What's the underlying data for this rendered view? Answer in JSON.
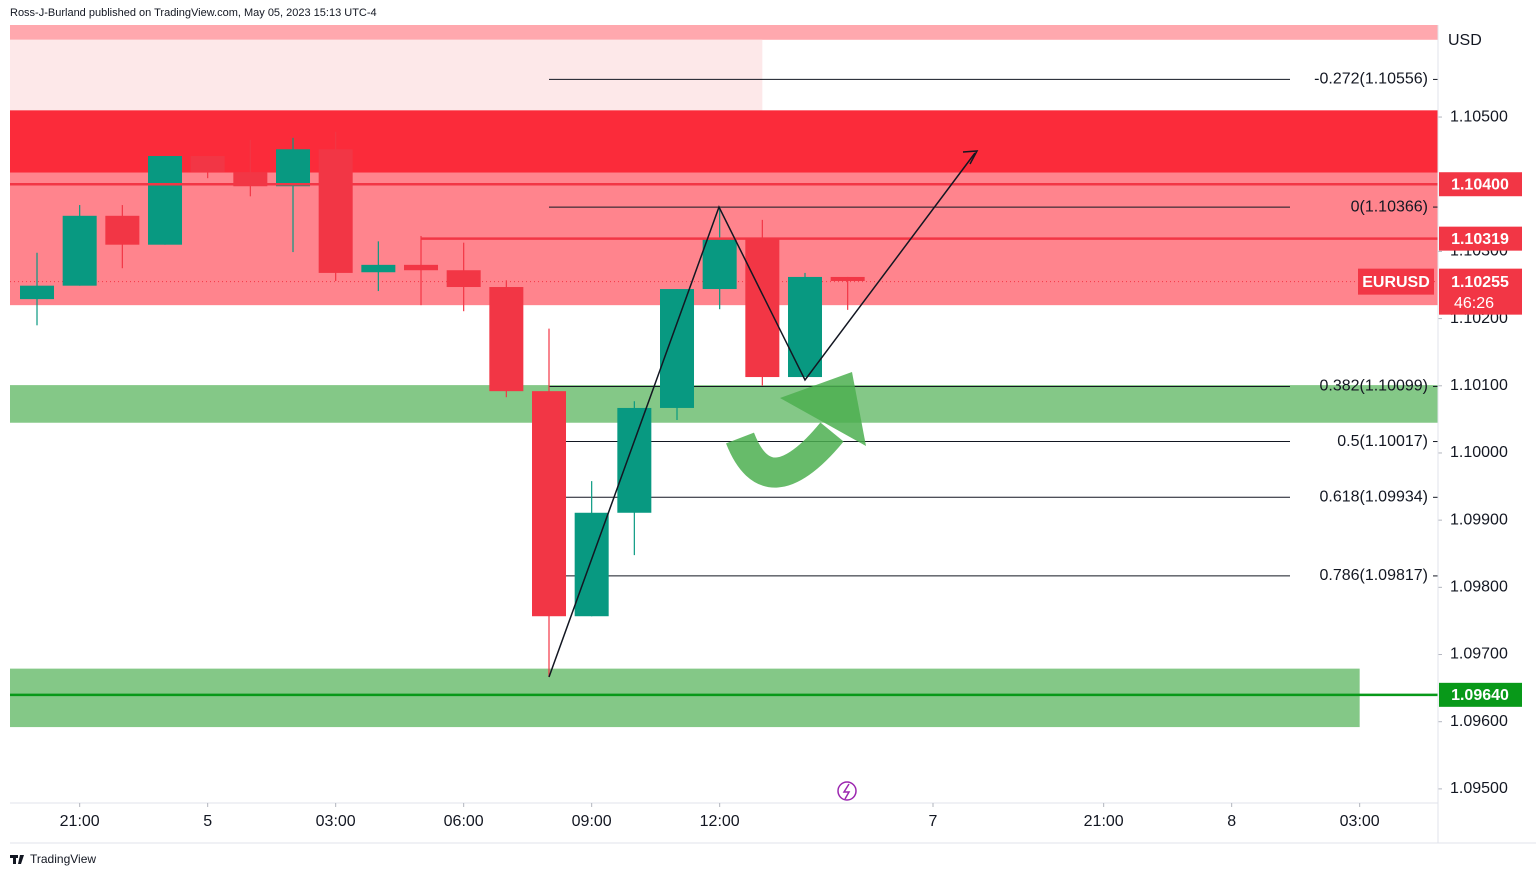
{
  "header": "Ross-J-Burland published on TradingView.com, May 05, 2023 15:13 UTC-4",
  "footer": "TradingView",
  "chart_data": {
    "type": "candlestick",
    "currency": "USD",
    "x": [
      0,
      1,
      2,
      3,
      4,
      5,
      6,
      7,
      8,
      9,
      10,
      11,
      12,
      13,
      14,
      15,
      16,
      17,
      18,
      19
    ],
    "open": [
      1.10229,
      1.10249,
      1.10353,
      1.1031,
      1.10442,
      1.10418,
      1.10397,
      1.10452,
      1.10269,
      1.1028,
      1.10272,
      1.10247,
      1.10092,
      1.09757,
      1.09911,
      1.10067,
      1.10244,
      1.1032,
      1.10113,
      1.10262
    ],
    "high": [
      1.10298,
      1.10369,
      1.10369,
      1.10442,
      1.10442,
      1.10466,
      1.10469,
      1.10478,
      1.10315,
      1.10323,
      1.10313,
      1.10257,
      1.10185,
      1.09958,
      1.10077,
      1.10244,
      1.10366,
      1.10347,
      1.10268,
      1.10262
    ],
    "low": [
      1.1019,
      1.10249,
      1.10275,
      1.1031,
      1.10409,
      1.10382,
      1.10299,
      1.10256,
      1.10241,
      1.1022,
      1.10211,
      1.10083,
      1.09667,
      1.09757,
      1.09848,
      1.10049,
      1.10214,
      1.101,
      1.10113,
      1.10213
    ],
    "close": [
      1.10249,
      1.10353,
      1.1031,
      1.10442,
      1.10418,
      1.10397,
      1.10452,
      1.10268,
      1.1028,
      1.10272,
      1.10247,
      1.10092,
      1.09757,
      1.09911,
      1.10067,
      1.10244,
      1.1032,
      1.10113,
      1.10262,
      1.10256
    ],
    "up_color": "#089981",
    "down_color": "#f23645",
    "xlim": [
      -0.633,
      32.836
    ],
    "xticks": [
      {
        "value": 1,
        "label": "21:00"
      },
      {
        "value": 4,
        "label": "5"
      },
      {
        "value": 7,
        "label": "03:00"
      },
      {
        "value": 10,
        "label": "06:00"
      },
      {
        "value": 13,
        "label": "09:00"
      },
      {
        "value": 16,
        "label": "12:00"
      },
      {
        "value": 21,
        "label": "7"
      },
      {
        "value": 25,
        "label": "21:00"
      },
      {
        "value": 28,
        "label": "8"
      },
      {
        "value": 31,
        "label": "03:00"
      }
    ],
    "ylim": [
      1.09479,
      1.10637
    ],
    "yticks": [
      {
        "value": 1.095,
        "label": "1.09500"
      },
      {
        "value": 1.096,
        "label": "1.09600"
      },
      {
        "value": 1.097,
        "label": "1.09700"
      },
      {
        "value": 1.098,
        "label": "1.09800"
      },
      {
        "value": 1.099,
        "label": "1.09900"
      },
      {
        "value": 1.1,
        "label": "1.10000"
      },
      {
        "value": 1.101,
        "label": "1.10100"
      },
      {
        "value": 1.102,
        "label": "1.10200"
      },
      {
        "value": 1.103,
        "label": "1.10300"
      },
      {
        "value": 1.105,
        "label": "1.10500"
      }
    ],
    "zones": [
      {
        "from": 1.10615,
        "to": 1.10637,
        "color": "#ffa8ae"
      },
      {
        "from": 1.1051,
        "to": 1.10615,
        "color": "#fde8e9",
        "x_to": 17
      },
      {
        "from": 1.10417,
        "to": 1.1051,
        "color": "#fb2b3a"
      },
      {
        "from": 1.1022,
        "to": 1.10417,
        "color": "#ff848d"
      },
      {
        "from": 1.10045,
        "to": 1.10101,
        "color": "#84c887"
      },
      {
        "from": 1.09592,
        "to": 1.09679,
        "color": "#84c887",
        "x_to": 31
      }
    ],
    "fib_levels": [
      {
        "value": 1.10556,
        "label": "-0.272(1.10556)"
      },
      {
        "value": 1.10366,
        "label": "0(1.10366)"
      },
      {
        "value": 1.10099,
        "label": "0.382(1.10099)"
      },
      {
        "value": 1.10017,
        "label": "0.5(1.10017)"
      },
      {
        "value": 1.09934,
        "label": "0.618(1.09934)"
      },
      {
        "value": 1.09817,
        "label": "0.786(1.09817)"
      }
    ],
    "price_lines": [
      {
        "value": 1.104,
        "label": "1.10400",
        "color": "#f23645"
      },
      {
        "value": 1.10319,
        "color": "#f23645"
      },
      {
        "value": 1.0964,
        "label": "1.09640",
        "color": "#089919"
      }
    ],
    "last_price": {
      "symbol": "EURUSD",
      "value": 1.10255,
      "countdown": "46:26",
      "color": "#f23645"
    }
  }
}
